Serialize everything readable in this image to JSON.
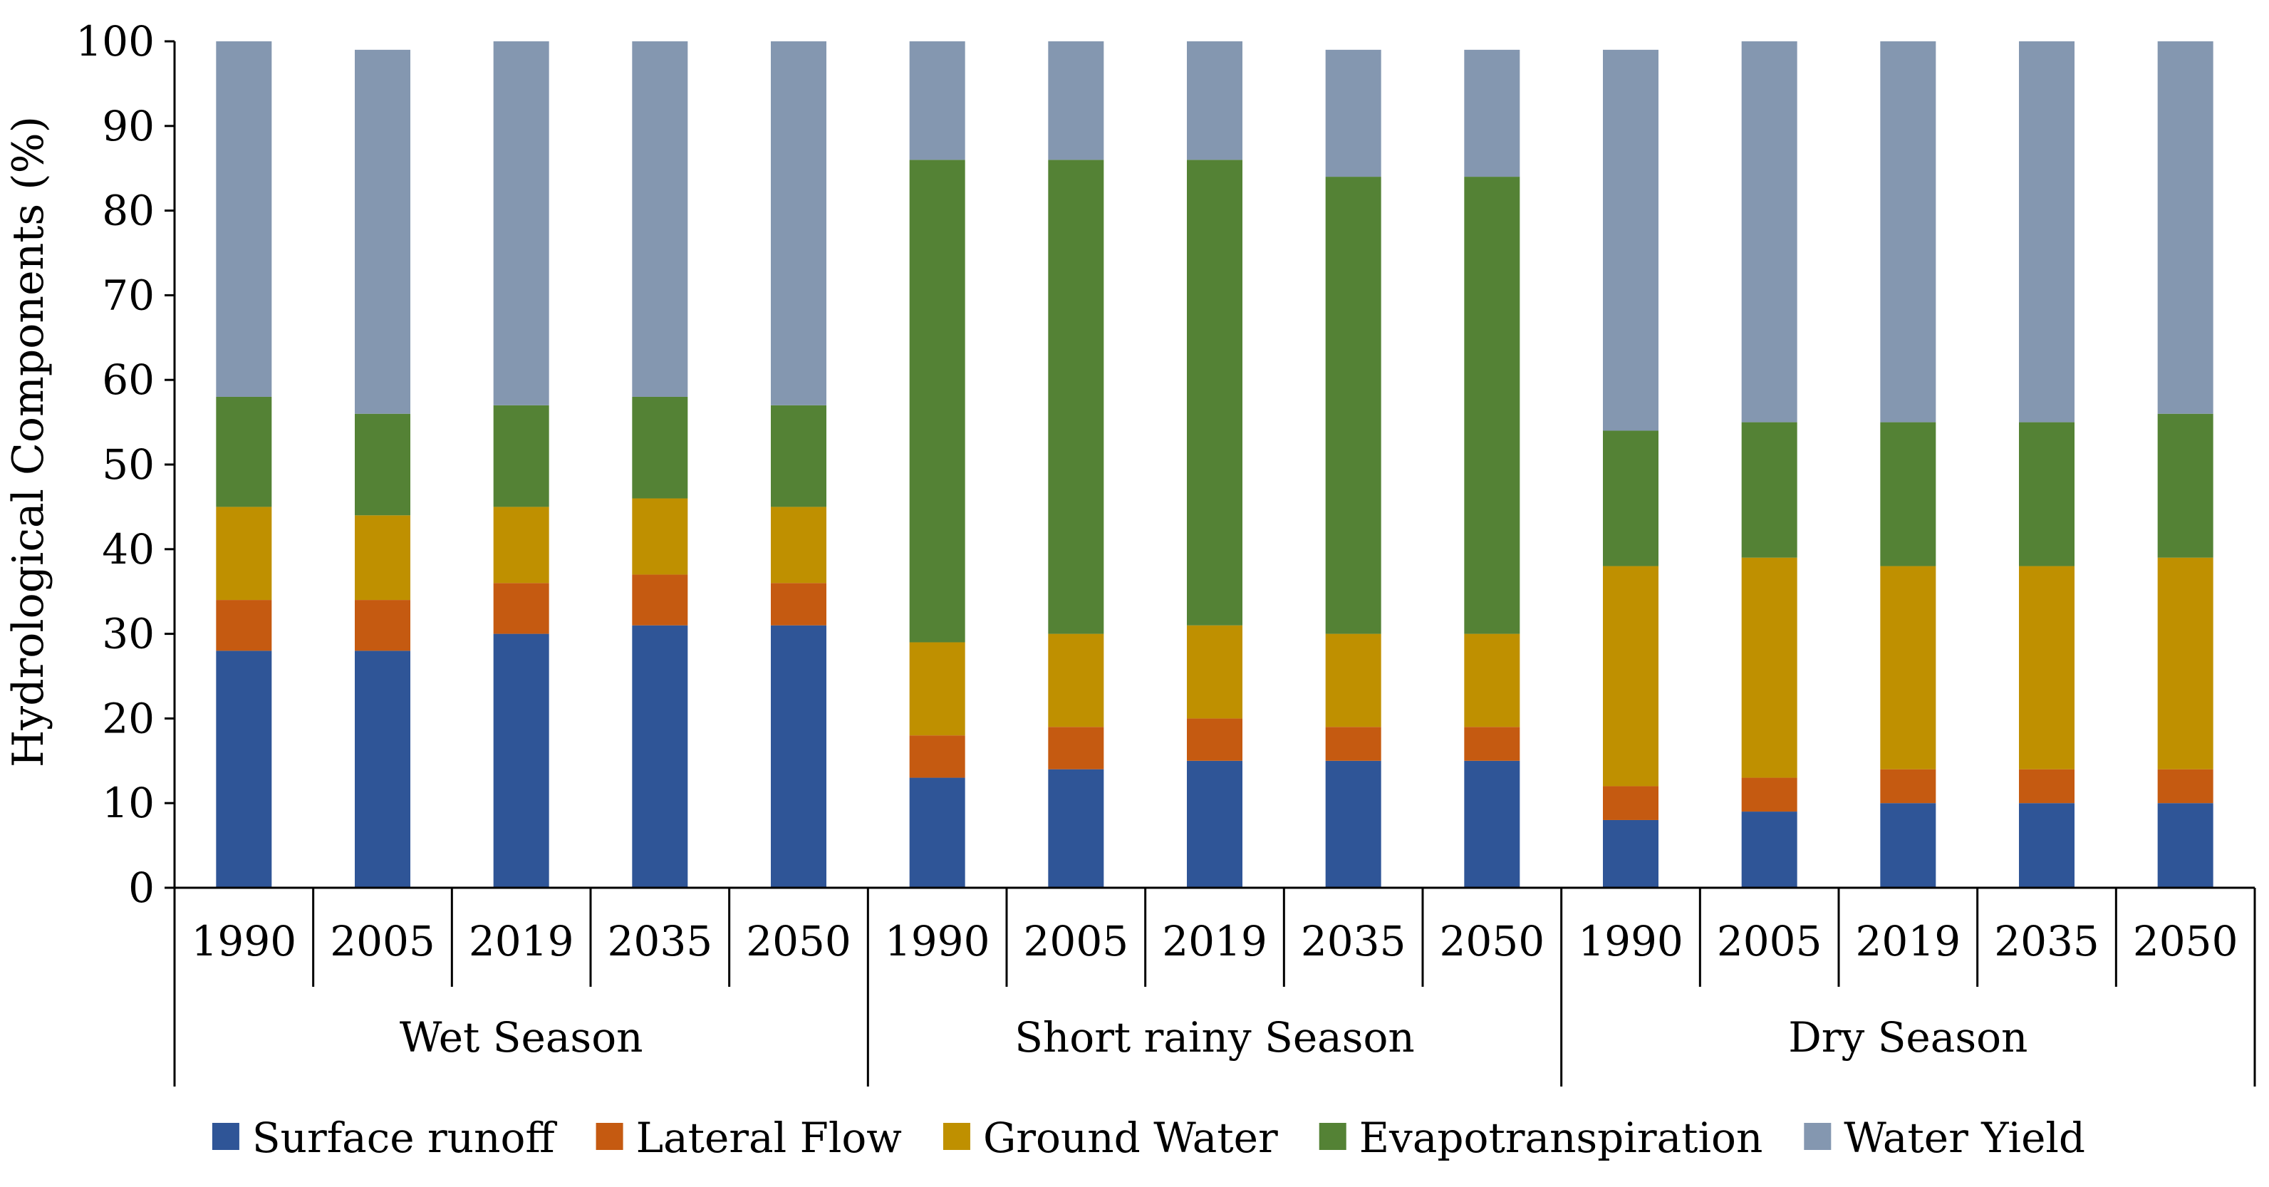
{
  "chart_data": {
    "type": "bar",
    "stacked": true,
    "ylabel": "Hydrological  Components (%)",
    "ylim": [
      0,
      100
    ],
    "yticks": [
      0,
      10,
      20,
      30,
      40,
      50,
      60,
      70,
      80,
      90,
      100
    ],
    "groups": [
      "Wet Season",
      "Short rainy Season",
      "Dry Season"
    ],
    "categories": [
      "1990",
      "2005",
      "2019",
      "2035",
      "2050",
      "1990",
      "2005",
      "2019",
      "2035",
      "2050",
      "1990",
      "2005",
      "2019",
      "2035",
      "2050"
    ],
    "category_group": [
      0,
      0,
      0,
      0,
      0,
      1,
      1,
      1,
      1,
      1,
      2,
      2,
      2,
      2,
      2
    ],
    "series": [
      {
        "name": "Surface runoff",
        "color": "#2f5597",
        "values": [
          28,
          28,
          30,
          31,
          31,
          13,
          14,
          15,
          15,
          15,
          8,
          9,
          10,
          10,
          10
        ]
      },
      {
        "name": "Lateral Flow",
        "color": "#c55a11",
        "values": [
          6,
          6,
          6,
          6,
          5,
          5,
          5,
          5,
          4,
          4,
          4,
          4,
          4,
          4,
          4
        ]
      },
      {
        "name": "Ground Water",
        "color": "#bf9000",
        "values": [
          11,
          10,
          9,
          9,
          9,
          11,
          11,
          11,
          11,
          11,
          26,
          26,
          24,
          24,
          25
        ]
      },
      {
        "name": "Evapotranspiration",
        "color": "#548235",
        "values": [
          13,
          12,
          12,
          12,
          12,
          57,
          56,
          55,
          54,
          54,
          16,
          16,
          17,
          17,
          17
        ]
      },
      {
        "name": "Water Yield",
        "color": "#8497b0",
        "values": [
          42,
          43,
          43,
          42,
          43,
          14,
          14,
          14,
          15,
          15,
          45,
          45,
          45,
          45,
          44
        ]
      }
    ],
    "legend_position": "bottom",
    "grid": false
  }
}
